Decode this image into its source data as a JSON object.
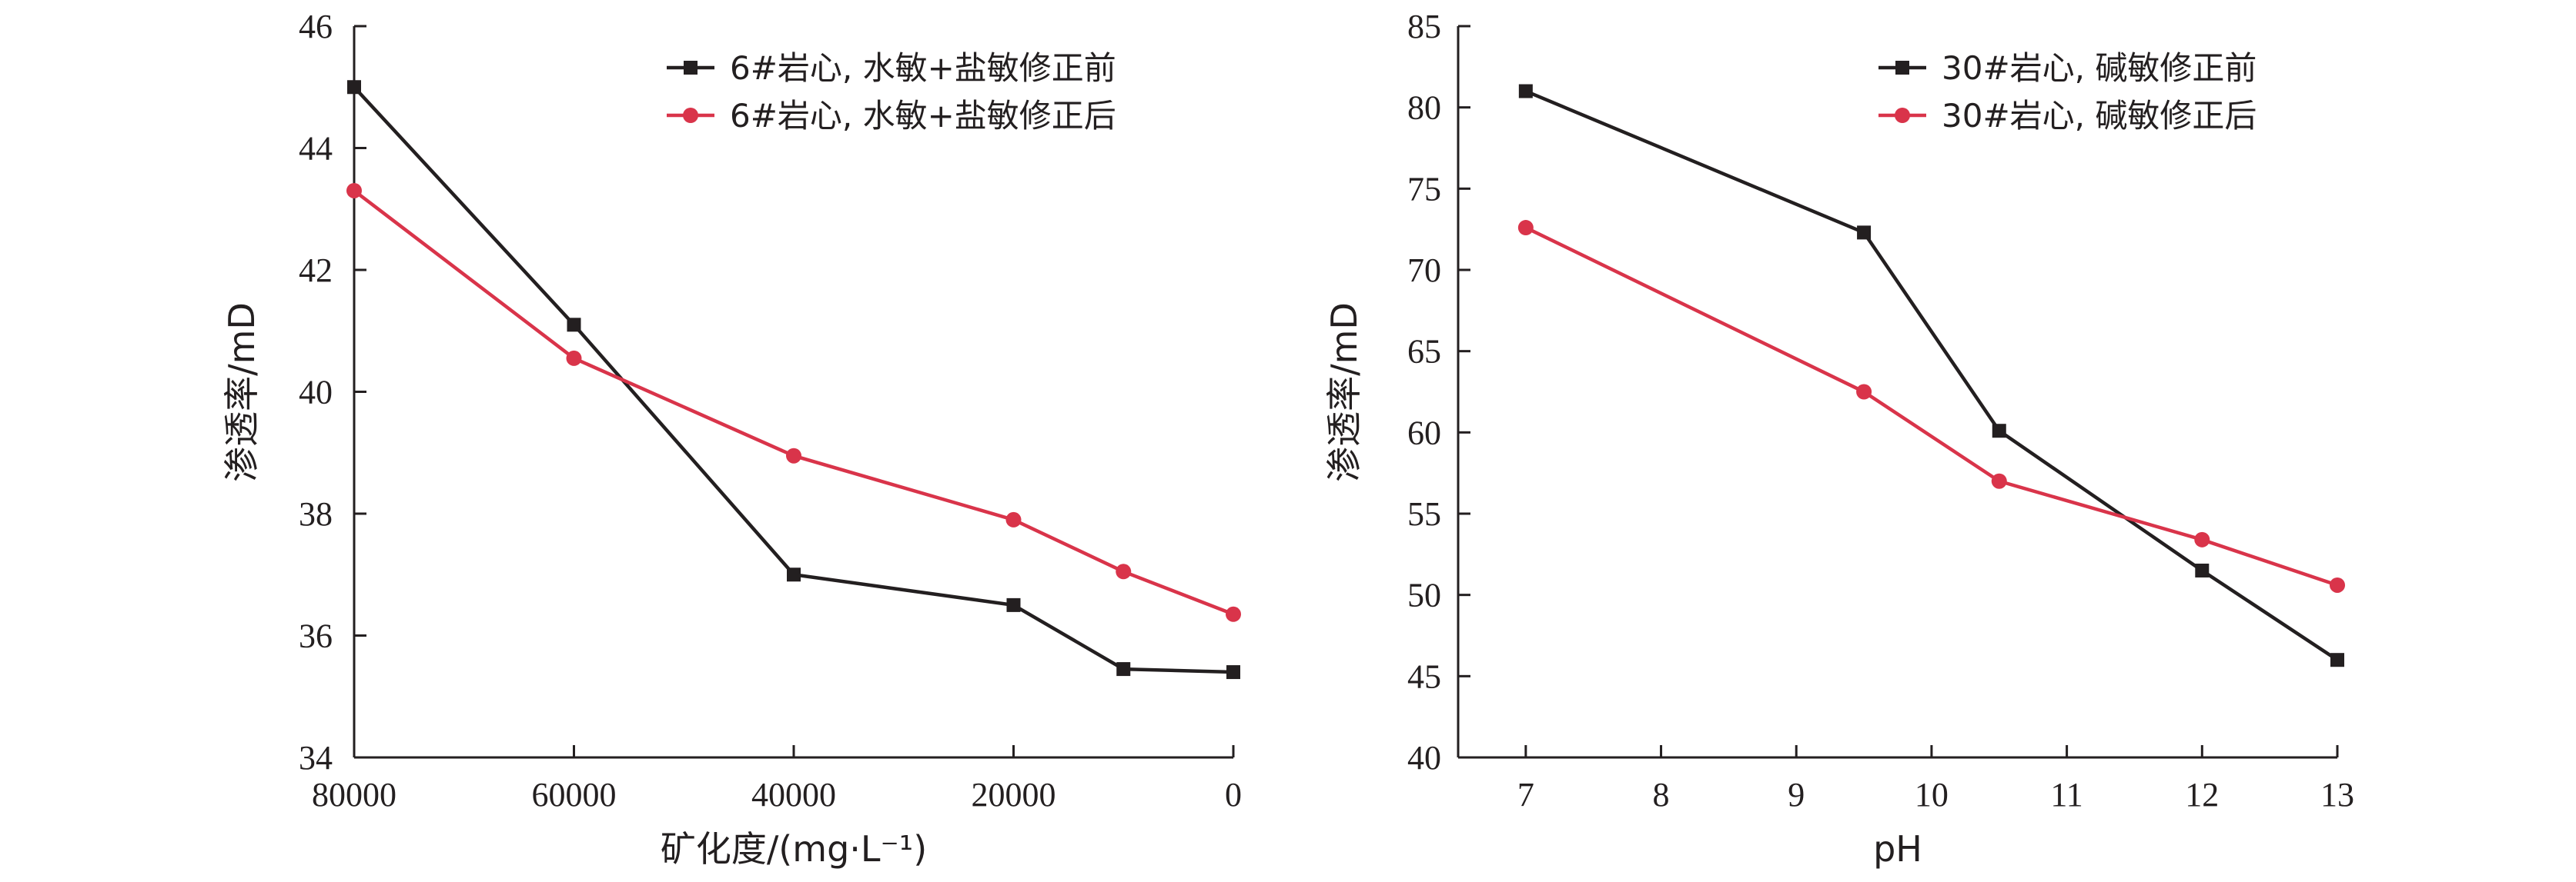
{
  "chart_data": [
    {
      "type": "line",
      "xlabel": "矿化度/(mg·L⁻¹)",
      "ylabel": "渗透率/mD",
      "x_reversed": true,
      "xlim": [
        0,
        80000
      ],
      "ylim": [
        34,
        46
      ],
      "xticks": [
        "80000",
        "60000",
        "40000",
        "20000",
        "0"
      ],
      "yticks": [
        "34",
        "36",
        "38",
        "40",
        "42",
        "44",
        "46"
      ],
      "legend_position": "top-right",
      "series": [
        {
          "name": "6#岩心, 水敏+盐敏修正前",
          "color": "#231f20",
          "marker": "square",
          "points": [
            [
              80000,
              45.0
            ],
            [
              60000,
              41.1
            ],
            [
              40000,
              37.0
            ],
            [
              20000,
              36.5
            ],
            [
              10000,
              35.45
            ],
            [
              0,
              35.4
            ]
          ]
        },
        {
          "name": "6#岩心, 水敏+盐敏修正后",
          "color": "#d9344a",
          "marker": "circle",
          "points": [
            [
              80000,
              43.3
            ],
            [
              60000,
              40.55
            ],
            [
              40000,
              38.95
            ],
            [
              20000,
              37.9
            ],
            [
              10000,
              37.05
            ],
            [
              0,
              36.35
            ]
          ]
        }
      ]
    },
    {
      "type": "line",
      "xlabel": "pH",
      "ylabel": "渗透率/mD",
      "x_reversed": false,
      "xlim": [
        6.5,
        13
      ],
      "ylim": [
        40,
        85
      ],
      "xticks": [
        "7",
        "8",
        "9",
        "10",
        "11",
        "12",
        "13"
      ],
      "yticks": [
        "40",
        "45",
        "50",
        "55",
        "60",
        "65",
        "70",
        "75",
        "80",
        "85"
      ],
      "legend_position": "top-right",
      "series": [
        {
          "name": "30#岩心, 碱敏修正前",
          "color": "#231f20",
          "marker": "square",
          "points": [
            [
              7,
              81.0
            ],
            [
              9.5,
              72.3
            ],
            [
              10.5,
              60.1
            ],
            [
              12,
              51.5
            ],
            [
              13,
              46.0
            ]
          ]
        },
        {
          "name": "30#岩心, 碱敏修正后",
          "color": "#d9344a",
          "marker": "circle",
          "points": [
            [
              7,
              72.6
            ],
            [
              9.5,
              62.5
            ],
            [
              10.5,
              57.0
            ],
            [
              12,
              53.4
            ],
            [
              13,
              50.6
            ]
          ]
        }
      ]
    }
  ]
}
